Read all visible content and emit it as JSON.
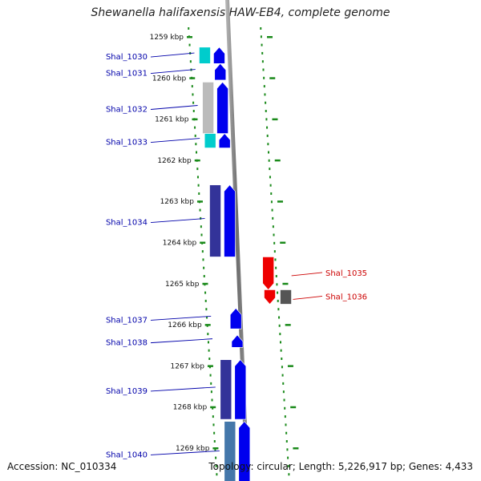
{
  "title": "Shewanella halifaxensis HAW-EB4, complete genome",
  "footer": {
    "accession": "Accession: NC_010334",
    "topology": "Topology: circular; Length: 5,226,917 bp; Genes: 4,433"
  },
  "colors": {
    "forward_gene": "#0000ee",
    "reverse_gene": "#ee0000",
    "ruler": "#1a8a1a",
    "label_forward": "#0000aa",
    "label_reverse": "#cc0000"
  },
  "kbp_marks": [
    {
      "label": "1259 kbp",
      "kbp": 1259
    },
    {
      "label": "1260 kbp",
      "kbp": 1260
    },
    {
      "label": "1261 kbp",
      "kbp": 1261
    },
    {
      "label": "1262 kbp",
      "kbp": 1262
    },
    {
      "label": "1263 kbp",
      "kbp": 1263
    },
    {
      "label": "1264 kbp",
      "kbp": 1264
    },
    {
      "label": "1265 kbp",
      "kbp": 1265
    },
    {
      "label": "1266 kbp",
      "kbp": 1266
    },
    {
      "label": "1267 kbp",
      "kbp": 1267
    },
    {
      "label": "1268 kbp",
      "kbp": 1268
    },
    {
      "label": "1269 kbp",
      "kbp": 1269
    }
  ],
  "genes": [
    {
      "name": "Shal_1030",
      "strand": "+",
      "start_kbp": 1259.25,
      "end_kbp": 1259.65,
      "cog_color": "#00cccc"
    },
    {
      "name": "Shal_1031",
      "strand": "+",
      "start_kbp": 1259.65,
      "end_kbp": 1260.05,
      "cog_color": ""
    },
    {
      "name": "Shal_1032",
      "strand": "+",
      "start_kbp": 1260.1,
      "end_kbp": 1261.35,
      "cog_color": "#bbbbbb"
    },
    {
      "name": "Shal_1033",
      "strand": "+",
      "start_kbp": 1261.35,
      "end_kbp": 1261.7,
      "cog_color": "#00cccc"
    },
    {
      "name": "Shal_1034",
      "strand": "+",
      "start_kbp": 1262.6,
      "end_kbp": 1264.35,
      "cog_color": "#333399"
    },
    {
      "name": "Shal_1035",
      "strand": "-",
      "start_kbp": 1264.35,
      "end_kbp": 1265.15,
      "cog_color": ""
    },
    {
      "name": "Shal_1036",
      "strand": "-",
      "start_kbp": 1265.15,
      "end_kbp": 1265.5,
      "cog_color": "#555555"
    },
    {
      "name": "Shal_1037",
      "strand": "+",
      "start_kbp": 1265.6,
      "end_kbp": 1266.1,
      "cog_color": ""
    },
    {
      "name": "Shal_1038",
      "strand": "+",
      "start_kbp": 1266.25,
      "end_kbp": 1266.55,
      "cog_color": ""
    },
    {
      "name": "Shal_1039",
      "strand": "+",
      "start_kbp": 1266.85,
      "end_kbp": 1268.3,
      "cog_color": "#333399"
    },
    {
      "name": "Shal_1040",
      "strand": "+",
      "start_kbp": 1268.35,
      "end_kbp": 1269.9,
      "cog_color": "#4477aa"
    }
  ]
}
